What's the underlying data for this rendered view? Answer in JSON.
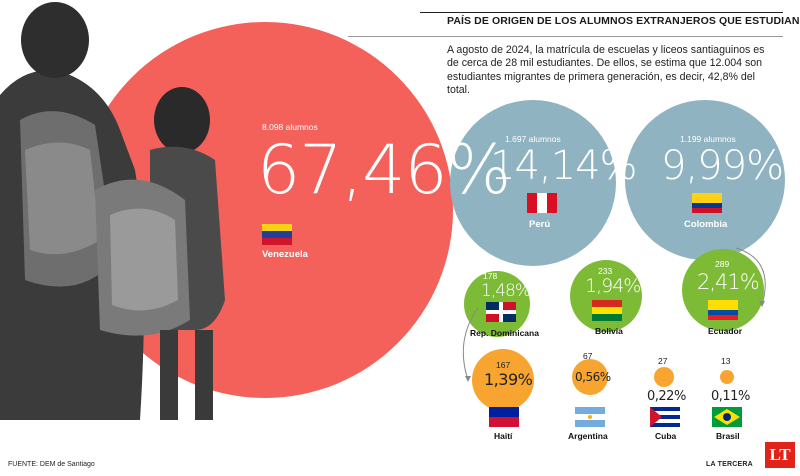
{
  "header": {
    "title": "PAÍS DE ORIGEN DE LOS ALUMNOS EXTRANJEROS QUE ESTUDIAN EN SANTIAGO",
    "intro": "A agosto de 2024, la matrícula de escuelas y liceos santiaguinos es de cerca de 28 mil estudiantes. De ellos, se estima que 12.004 son estudiantes migrantes de primera generación, es decir, 42,8% del total."
  },
  "footer": {
    "source_label": "FUENTE:",
    "source_text": "DEM de Santiago",
    "brand": "LA TERCERA",
    "logo": "LT"
  },
  "chart_data": {
    "type": "bubble",
    "title": "PAÍS DE ORIGEN DE LOS ALUMNOS EXTRANJEROS QUE ESTUDIAN EN SANTIAGO",
    "series": [
      {
        "country": "Venezuela",
        "students": "8.098 alumnos",
        "value": 67.46,
        "label": "67,46%",
        "color": "#f4605a"
      },
      {
        "country": "Perú",
        "students": "1.697 alumnos",
        "value": 14.14,
        "label": "14,14%",
        "color": "#8fb3c1"
      },
      {
        "country": "Colombia",
        "students": "1.199 alumnos",
        "value": 9.99,
        "label": "9,99%",
        "color": "#8fb3c1"
      },
      {
        "country": "Rep. Dominicana",
        "students": "178",
        "value": 1.48,
        "label": "1,48%",
        "color": "#7dbb36"
      },
      {
        "country": "Bolivia",
        "students": "233",
        "value": 1.94,
        "label": "1,94%",
        "color": "#7dbb36"
      },
      {
        "country": "Ecuador",
        "students": "289",
        "value": 2.41,
        "label": "2,41%",
        "color": "#7dbb36"
      },
      {
        "country": "Haití",
        "students": "167",
        "value": 1.39,
        "label": "1,39%",
        "color": "#f7a530"
      },
      {
        "country": "Argentina",
        "students": "67",
        "value": 0.56,
        "label": "0,56%",
        "color": "#f7a530"
      },
      {
        "country": "Cuba",
        "students": "27",
        "value": 0.22,
        "label": "0,22%",
        "color": "#f7a530"
      },
      {
        "country": "Brasil",
        "students": "13",
        "value": 0.11,
        "label": "0,11%",
        "color": "#f7a530"
      }
    ]
  }
}
